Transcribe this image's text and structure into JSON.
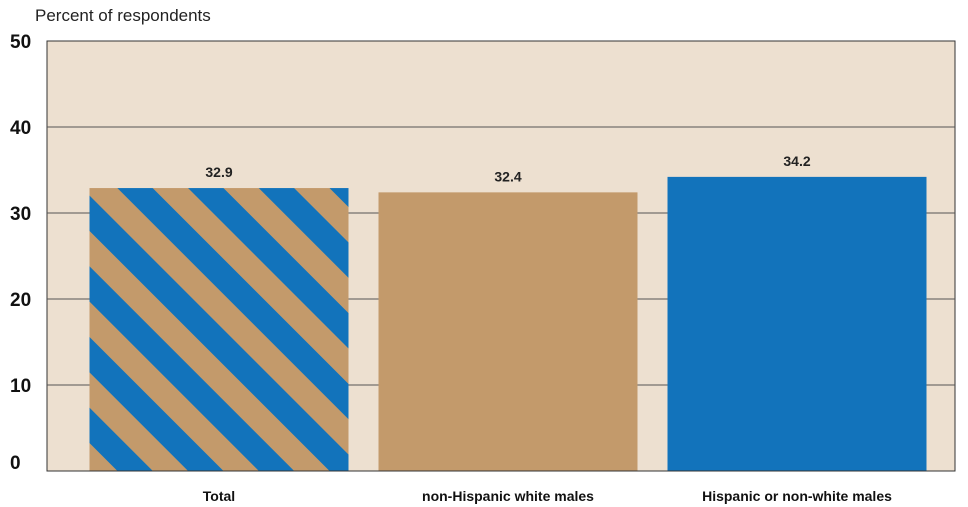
{
  "chart_data": {
    "type": "bar",
    "title": "Percent of respondents",
    "categories": [
      "Total",
      "non-Hispanic white males",
      "Hispanic or non-white males"
    ],
    "values": [
      32.9,
      32.4,
      34.2
    ],
    "data_labels": [
      "32.9",
      "32.4",
      "34.2"
    ],
    "ylim": [
      0,
      50
    ],
    "yticks": [
      0,
      10,
      20,
      30,
      40,
      50
    ],
    "grid": true,
    "colors": {
      "plot_background": "#ede0d0",
      "tan": "#c39a6b",
      "blue": "#1273bb",
      "gridline": "#555555"
    },
    "bar_styles": [
      "striped-blue-tan",
      "solid-tan",
      "solid-blue"
    ]
  }
}
